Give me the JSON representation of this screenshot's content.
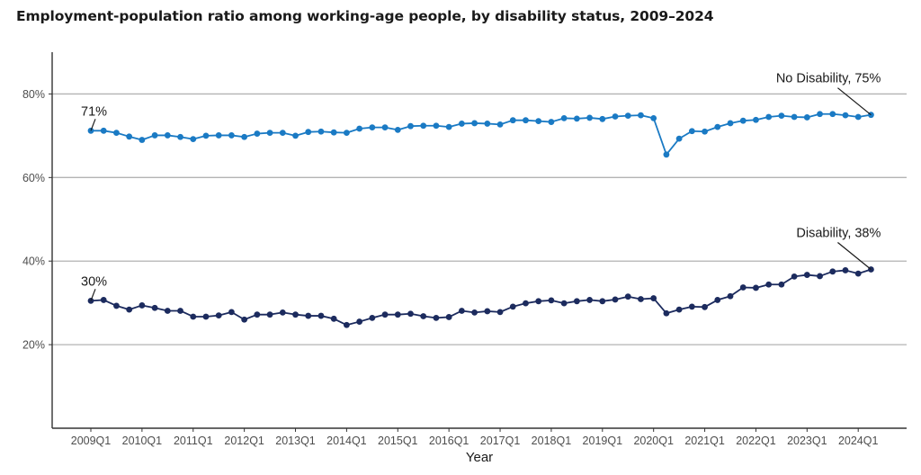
{
  "chart_data": {
    "type": "line",
    "title": "Employment-population ratio among working-age people, by disability status, 2009–2024",
    "xlabel": "Year",
    "ylabel": "",
    "ylim": [
      0,
      90
    ],
    "yticks": [
      20,
      40,
      60,
      80
    ],
    "ytick_labels": [
      "20%",
      "40%",
      "60%",
      "80%"
    ],
    "xtick_labels": [
      "2009Q1",
      "2010Q1",
      "2011Q1",
      "2012Q1",
      "2013Q1",
      "2014Q1",
      "2015Q1",
      "2016Q1",
      "2017Q1",
      "2018Q1",
      "2019Q1",
      "2020Q1",
      "2021Q1",
      "2022Q1",
      "2023Q1",
      "2024Q1"
    ],
    "grid": "horizontal major",
    "x_start": "2009Q1",
    "x_end": "2024Q2",
    "series": [
      {
        "name": "No Disability",
        "color": "#1a7ac4",
        "values": [
          71.2,
          71.2,
          70.7,
          69.8,
          69.0,
          70.1,
          70.1,
          69.7,
          69.2,
          70.0,
          70.1,
          70.1,
          69.7,
          70.5,
          70.7,
          70.7,
          70.0,
          70.9,
          71.0,
          70.8,
          70.7,
          71.7,
          72.0,
          72.0,
          71.4,
          72.3,
          72.4,
          72.4,
          72.1,
          72.9,
          73.0,
          72.9,
          72.7,
          73.7,
          73.7,
          73.5,
          73.3,
          74.2,
          74.1,
          74.3,
          74.0,
          74.6,
          74.8,
          74.9,
          74.2,
          65.5,
          69.3,
          71.1,
          71.0,
          72.1,
          73.0,
          73.6,
          73.8,
          74.5,
          74.8,
          74.5,
          74.4,
          75.2,
          75.2,
          74.9,
          74.5,
          75.0
        ],
        "start_label": "71%",
        "end_label": "No Disability, 75%"
      },
      {
        "name": "Disability",
        "color": "#1c2b5e",
        "values": [
          30.5,
          30.7,
          29.3,
          28.4,
          29.4,
          28.8,
          28.1,
          28.1,
          26.7,
          26.7,
          27.0,
          27.8,
          26.0,
          27.2,
          27.2,
          27.7,
          27.2,
          26.9,
          26.9,
          26.2,
          24.7,
          25.5,
          26.4,
          27.2,
          27.2,
          27.4,
          26.8,
          26.4,
          26.6,
          28.1,
          27.7,
          28.0,
          27.8,
          29.1,
          29.9,
          30.4,
          30.6,
          29.9,
          30.4,
          30.7,
          30.4,
          30.8,
          31.5,
          30.9,
          31.1,
          27.5,
          28.4,
          29.1,
          29.0,
          30.7,
          31.6,
          33.7,
          33.6,
          34.4,
          34.4,
          36.3,
          36.7,
          36.4,
          37.5,
          37.8,
          37.0,
          38.0
        ],
        "start_label": "30%",
        "end_label": "Disability, 38%"
      }
    ]
  }
}
